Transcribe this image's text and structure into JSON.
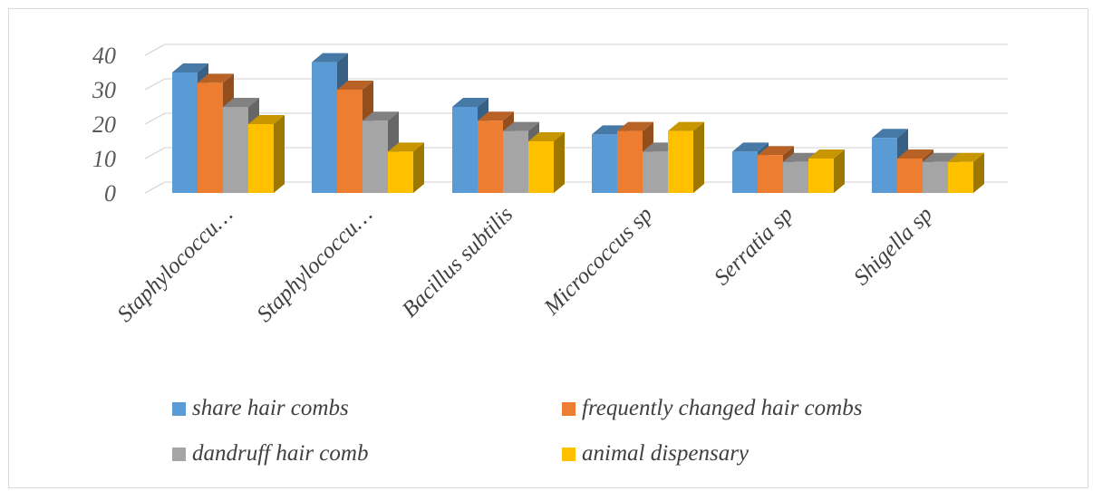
{
  "chart_data": {
    "type": "bar",
    "style": "3d-clustered-column",
    "categories": [
      "Staphylococcu…",
      "Staphylococcu…",
      "Bacillus subtilis",
      "Micrococcus sp",
      "Serratia sp",
      "Shigella sp"
    ],
    "series": [
      {
        "name": "share hair combs",
        "color": "#5B9BD5",
        "values": [
          35,
          38,
          25,
          17,
          12,
          16
        ]
      },
      {
        "name": "frequently changed hair combs",
        "color": "#ED7D31",
        "values": [
          32,
          30,
          21,
          18,
          11,
          10
        ]
      },
      {
        "name": "dandruff hair comb",
        "color": "#A5A5A5",
        "values": [
          25,
          21,
          18,
          12,
          9,
          9
        ]
      },
      {
        "name": "animal dispensary",
        "color": "#FFC000",
        "values": [
          20,
          12,
          15,
          18,
          10,
          9
        ]
      }
    ],
    "yticks": [
      0,
      10,
      20,
      30,
      40
    ],
    "ylim": [
      0,
      40
    ],
    "grid": true,
    "legend": "bottom",
    "title": "",
    "xlabel": "",
    "ylabel": ""
  }
}
